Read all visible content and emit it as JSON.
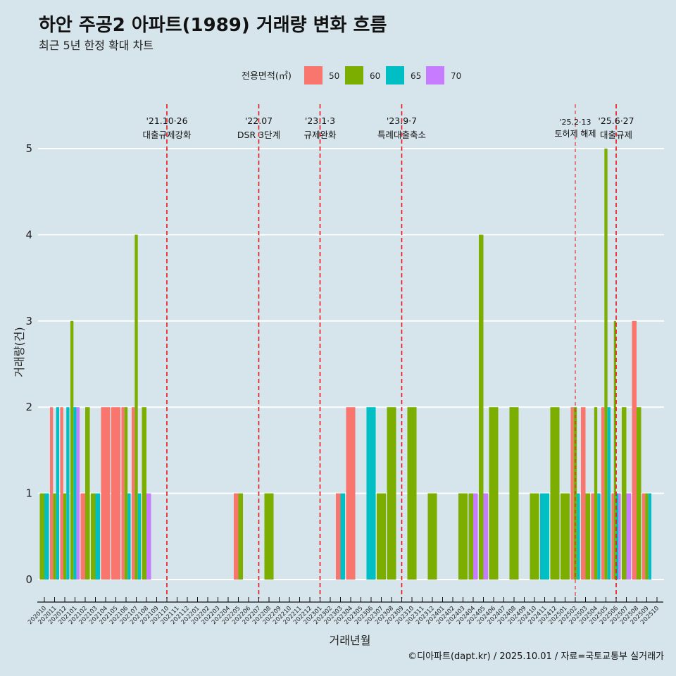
{
  "header": {
    "title": "하안 주공2 아파트(1989) 거래량 변화 흐름",
    "subtitle": "최근 5년 한정 확대 차트"
  },
  "caption": "©디아파트(dapt.kr) / 2025.10.01 / 자료=국토교통부 실거래가",
  "chart_data": {
    "type": "bar",
    "title": "하안 주공2 아파트(1989) 거래량 변화 흐름",
    "subtitle": "최근 5년 한정 확대 차트",
    "xlabel": "거래년월",
    "ylabel": "거래량(건)",
    "ylim": [
      0,
      5
    ],
    "yticks": [
      0,
      1,
      2,
      3,
      4,
      5
    ],
    "grid": "horizontal-major",
    "bar_position": "dodge",
    "legend_position": "top",
    "legend_title": "전용면적(㎡)",
    "categories": [
      "202010",
      "202011",
      "202012",
      "202101",
      "202102",
      "202103",
      "202104",
      "202105",
      "202106",
      "202107",
      "202108",
      "202109",
      "202110",
      "202111",
      "202112",
      "202201",
      "202202",
      "202203",
      "202204",
      "202205",
      "202206",
      "202207",
      "202208",
      "202209",
      "202210",
      "202211",
      "202212",
      "202301",
      "202302",
      "202303",
      "202304",
      "202305",
      "202306",
      "202307",
      "202308",
      "202309",
      "202310",
      "202311",
      "202312",
      "202401",
      "202402",
      "202403",
      "202404",
      "202405",
      "202406",
      "202407",
      "202408",
      "202409",
      "202410",
      "202411",
      "202412",
      "202501",
      "202502",
      "202503",
      "202504",
      "202505",
      "202506",
      "202507",
      "202508",
      "202509",
      "202510"
    ],
    "series": [
      {
        "name": "50",
        "color": "#F8766D",
        "values": [
          0,
          2,
          2,
          0,
          1,
          0,
          2,
          2,
          2,
          2,
          0,
          0,
          0,
          0,
          0,
          0,
          0,
          0,
          0,
          1,
          0,
          0,
          0,
          0,
          0,
          0,
          0,
          0,
          0,
          1,
          2,
          0,
          0,
          0,
          0,
          0,
          0,
          0,
          0,
          0,
          0,
          0,
          0,
          0,
          0,
          0,
          0,
          0,
          0,
          0,
          0,
          0,
          2,
          2,
          1,
          2,
          1,
          0,
          3,
          1,
          0
        ]
      },
      {
        "name": "60",
        "color": "#7CAE00",
        "values": [
          1,
          1,
          1,
          3,
          2,
          1,
          0,
          0,
          2,
          4,
          2,
          0,
          0,
          0,
          0,
          0,
          0,
          0,
          0,
          1,
          0,
          0,
          1,
          0,
          0,
          0,
          0,
          0,
          0,
          0,
          0,
          0,
          0,
          1,
          2,
          0,
          2,
          0,
          1,
          0,
          0,
          1,
          1,
          4,
          2,
          0,
          2,
          0,
          1,
          0,
          2,
          1,
          2,
          1,
          2,
          5,
          3,
          2,
          2,
          1,
          0
        ]
      },
      {
        "name": "65",
        "color": "#00BFC4",
        "values": [
          1,
          2,
          2,
          2,
          0,
          1,
          0,
          0,
          1,
          1,
          0,
          0,
          0,
          0,
          0,
          0,
          0,
          0,
          0,
          0,
          0,
          0,
          0,
          0,
          0,
          0,
          0,
          0,
          0,
          1,
          0,
          0,
          2,
          0,
          0,
          0,
          0,
          0,
          0,
          0,
          0,
          0,
          0,
          0,
          0,
          0,
          0,
          0,
          0,
          1,
          0,
          0,
          1,
          0,
          1,
          2,
          1,
          0,
          0,
          1,
          0
        ]
      },
      {
        "name": "70",
        "color": "#C77CFF",
        "values": [
          0,
          0,
          0,
          2,
          0,
          0,
          0,
          0,
          0,
          0,
          1,
          0,
          0,
          0,
          0,
          0,
          0,
          0,
          0,
          0,
          0,
          0,
          0,
          0,
          0,
          0,
          0,
          0,
          0,
          0,
          0,
          0,
          0,
          0,
          0,
          0,
          0,
          0,
          0,
          0,
          0,
          0,
          1,
          1,
          0,
          0,
          0,
          0,
          0,
          0,
          0,
          0,
          0,
          0,
          0,
          0,
          1,
          1,
          0,
          0,
          0
        ]
      }
    ],
    "annotations": [
      {
        "x": "202110",
        "date": "'21.10·26",
        "label": "대출규제강화",
        "style": "thick"
      },
      {
        "x": "202207",
        "date": "'22.07",
        "label": "DSR 3단계",
        "style": "thick"
      },
      {
        "x": "202301",
        "date": "'23.1·3",
        "label": "규제완화",
        "style": "thick"
      },
      {
        "x": "202309",
        "date": "'23.9·7",
        "label": "특례대출축소",
        "style": "thick"
      },
      {
        "x": "202502",
        "date": "'25.2·13",
        "label": "토허제 해제",
        "style": "thin"
      },
      {
        "x": "202506",
        "date": "'25.6·27",
        "label": "대출규제",
        "style": "thick"
      }
    ],
    "annotation_color": "#E8151B"
  },
  "colors": {
    "background": "#d6e4eb",
    "grid": "#ffffff",
    "axis": "#111111"
  }
}
